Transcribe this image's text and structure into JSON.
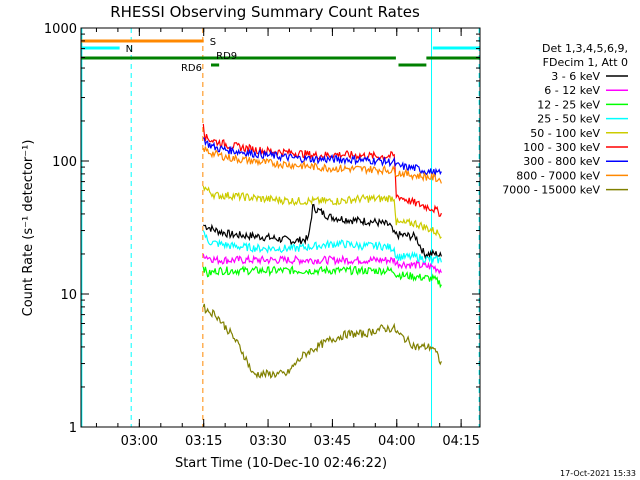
{
  "chart_data": {
    "type": "line",
    "title": "RHESSI Observing Summary Count Rates",
    "xlabel": "Start Time (10-Dec-10 02:46:22)",
    "ylabel": "Count Rate (s⁻¹ detector⁻¹)",
    "y_scale": "log",
    "ylim": [
      1,
      1000
    ],
    "xlim_minutes": [
      0,
      93
    ],
    "x_ticks": [
      {
        "label": "03:00",
        "value": 13.6
      },
      {
        "label": "03:15",
        "value": 28.6
      },
      {
        "label": "03:30",
        "value": 43.6
      },
      {
        "label": "03:45",
        "value": 58.6
      },
      {
        "label": "04:00",
        "value": 73.6
      },
      {
        "label": "04:15",
        "value": 88.6
      }
    ],
    "y_ticks": [
      {
        "label": "1",
        "value": 1
      },
      {
        "label": "10",
        "value": 10
      },
      {
        "label": "100",
        "value": 100
      },
      {
        "label": "1000",
        "value": 1000
      }
    ],
    "legend_header": [
      "Det 1,3,4,5,6,9,",
      "FDecim 1, Att 0"
    ],
    "legend_position": "right",
    "series": [
      {
        "name": "3 - 6 keV",
        "color": "#000000",
        "points": [
          [
            28.5,
            33
          ],
          [
            29.5,
            32
          ],
          [
            31.5,
            30
          ],
          [
            35,
            28
          ],
          [
            42,
            27
          ],
          [
            50,
            25
          ],
          [
            53,
            26
          ],
          [
            54,
            45
          ],
          [
            58,
            38
          ],
          [
            63,
            36
          ],
          [
            68,
            35
          ],
          [
            72,
            33
          ],
          [
            73,
            28
          ],
          [
            78,
            27
          ],
          [
            80,
            20
          ],
          [
            82,
            20
          ],
          [
            83,
            20
          ],
          [
            84,
            19
          ]
        ]
      },
      {
        "name": "6 - 12 keV",
        "color": "#ff00ff",
        "points": [
          [
            28.5,
            20
          ],
          [
            29.5,
            19
          ],
          [
            31.5,
            18
          ],
          [
            40,
            18
          ],
          [
            50,
            18
          ],
          [
            60,
            18
          ],
          [
            70,
            18
          ],
          [
            73,
            18
          ],
          [
            73.5,
            17
          ],
          [
            78,
            16.5
          ],
          [
            82,
            16
          ],
          [
            84,
            15
          ]
        ]
      },
      {
        "name": "12 - 25 keV",
        "color": "#00ff00",
        "points": [
          [
            28.5,
            16
          ],
          [
            29.5,
            14
          ],
          [
            31.5,
            15
          ],
          [
            40,
            15
          ],
          [
            50,
            15
          ],
          [
            60,
            15
          ],
          [
            72,
            15
          ],
          [
            73,
            15
          ],
          [
            73.5,
            14
          ],
          [
            78,
            13.5
          ],
          [
            82,
            13
          ],
          [
            84,
            12
          ]
        ]
      },
      {
        "name": "25 - 50 keV",
        "color": "#00ffff",
        "points": [
          [
            28.5,
            30
          ],
          [
            29.5,
            25
          ],
          [
            31.5,
            24
          ],
          [
            35,
            23
          ],
          [
            42,
            22
          ],
          [
            50,
            22
          ],
          [
            55,
            23
          ],
          [
            60,
            24
          ],
          [
            65,
            23
          ],
          [
            70,
            23
          ],
          [
            73,
            22
          ],
          [
            73.5,
            19
          ],
          [
            78,
            19
          ],
          [
            82,
            18
          ],
          [
            84,
            18
          ]
        ]
      },
      {
        "name": "50 - 100 keV",
        "color": "#cccc00",
        "points": [
          [
            28.5,
            65
          ],
          [
            29.5,
            60
          ],
          [
            31.5,
            55
          ],
          [
            35,
            55
          ],
          [
            42,
            52
          ],
          [
            50,
            50
          ],
          [
            55,
            50
          ],
          [
            60,
            50
          ],
          [
            65,
            52
          ],
          [
            70,
            52
          ],
          [
            73,
            53
          ],
          [
            73.5,
            34
          ],
          [
            78,
            34
          ],
          [
            82,
            30
          ],
          [
            84,
            28
          ]
        ]
      },
      {
        "name": "100 - 300 keV",
        "color": "#ff0000",
        "points": [
          [
            28.5,
            190
          ],
          [
            29,
            150
          ],
          [
            31.5,
            140
          ],
          [
            35,
            130
          ],
          [
            42,
            120
          ],
          [
            50,
            115
          ],
          [
            55,
            110
          ],
          [
            60,
            112
          ],
          [
            65,
            110
          ],
          [
            70,
            108
          ],
          [
            73,
            110
          ],
          [
            73.5,
            55
          ],
          [
            78,
            48
          ],
          [
            82,
            44
          ],
          [
            84,
            40
          ]
        ]
      },
      {
        "name": "300 - 800 keV",
        "color": "#0000ff",
        "points": [
          [
            28.5,
            150
          ],
          [
            29.5,
            135
          ],
          [
            31.5,
            125
          ],
          [
            35,
            120
          ],
          [
            42,
            112
          ],
          [
            50,
            105
          ],
          [
            55,
            103
          ],
          [
            60,
            103
          ],
          [
            65,
            102
          ],
          [
            70,
            100
          ],
          [
            73,
            98
          ],
          [
            73.5,
            92
          ],
          [
            78,
            88
          ],
          [
            82,
            82
          ],
          [
            84,
            80
          ]
        ]
      },
      {
        "name": "800 - 7000 keV",
        "color": "#ff8800",
        "points": [
          [
            28.5,
            125
          ],
          [
            29.5,
            118
          ],
          [
            31.5,
            112
          ],
          [
            35,
            105
          ],
          [
            42,
            98
          ],
          [
            50,
            93
          ],
          [
            55,
            90
          ],
          [
            60,
            88
          ],
          [
            65,
            87
          ],
          [
            70,
            86
          ],
          [
            73,
            85
          ],
          [
            73.5,
            82
          ],
          [
            78,
            78
          ],
          [
            82,
            75
          ],
          [
            84,
            72
          ]
        ]
      },
      {
        "name": "7000 - 15000 keV",
        "color": "#808000",
        "points": [
          [
            28.5,
            8
          ],
          [
            29.5,
            7.5
          ],
          [
            31.5,
            7
          ],
          [
            33,
            6
          ],
          [
            35,
            5
          ],
          [
            37,
            4
          ],
          [
            39,
            3
          ],
          [
            40,
            2.5
          ],
          [
            44,
            2.5
          ],
          [
            48,
            2.5
          ],
          [
            50,
            3
          ],
          [
            52,
            3.5
          ],
          [
            55,
            4
          ],
          [
            58,
            4.5
          ],
          [
            62,
            5
          ],
          [
            66,
            5
          ],
          [
            70,
            5.5
          ],
          [
            73,
            5.5
          ],
          [
            74,
            5
          ],
          [
            76,
            4.5
          ],
          [
            78,
            4
          ],
          [
            80,
            4
          ],
          [
            82,
            4
          ],
          [
            84,
            3
          ]
        ]
      }
    ],
    "top_flags": [
      {
        "label": "S",
        "color": "#ff8800",
        "segments": [
          [
            0,
            28.6
          ]
        ]
      },
      {
        "label": "N",
        "color": "#00ffff",
        "segments": [
          [
            0,
            9
          ],
          [
            82,
            93
          ]
        ]
      },
      {
        "label": "RD9",
        "color": "#008000",
        "segments": [
          [
            0,
            73.4
          ],
          [
            80.5,
            93
          ]
        ]
      },
      {
        "label": "RD6",
        "color": "#008000",
        "segments": [
          [
            30.3,
            32.2
          ],
          [
            74,
            80.5
          ]
        ]
      }
    ],
    "vertical_markers": [
      {
        "minute": 0.2,
        "color": "#00ffff",
        "style": "solid"
      },
      {
        "minute": 11.7,
        "color": "#00ffff",
        "style": "dashed"
      },
      {
        "minute": 28.4,
        "color": "#ff8800",
        "style": "dashed"
      },
      {
        "minute": 81.7,
        "color": "#00ffff",
        "style": "solid"
      },
      {
        "minute": 92.8,
        "color": "#00ffff",
        "style": "dashed"
      }
    ]
  },
  "timestamp": "17-Oct-2021 15:33"
}
